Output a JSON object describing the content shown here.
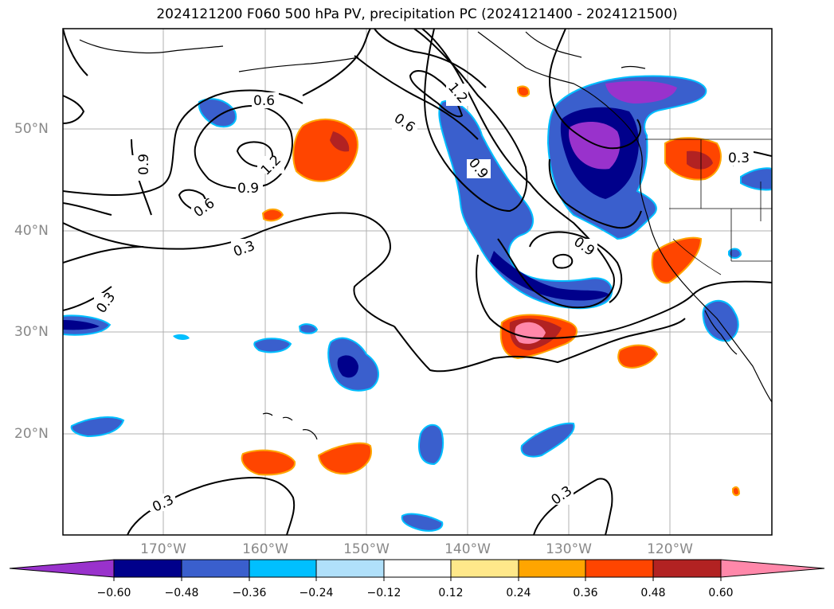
{
  "title": "2024121200 F060 500 hPa PV, precipitation PC (2024121400 - 2024121500)",
  "latitude_labels": [
    "50°N",
    "40°N",
    "30°N",
    "20°N"
  ],
  "longitude_labels": [
    "170°W",
    "160°W",
    "150°W",
    "140°W",
    "130°W",
    "120°W"
  ],
  "contour_labels": [
    "0.6",
    "0.9",
    "1.2",
    "0.6",
    "0.9",
    "0.3",
    "1.2",
    "0.6",
    "0.9",
    "0.9",
    "0.3",
    "0.3",
    "0.3",
    "0.3"
  ],
  "colorbar": {
    "tick_labels": [
      "−0.60",
      "−0.48",
      "−0.36",
      "−0.24",
      "−0.12",
      "0.12",
      "0.24",
      "0.36",
      "0.48",
      "0.60"
    ],
    "colors": [
      "#9932cc",
      "#00008b",
      "#3a5fcd",
      "#00bfff",
      "#b0e0fa",
      "#ffffff",
      "#ffe88a",
      "#ffa500",
      "#ff4500",
      "#b22222",
      "#ff88aa"
    ]
  }
}
